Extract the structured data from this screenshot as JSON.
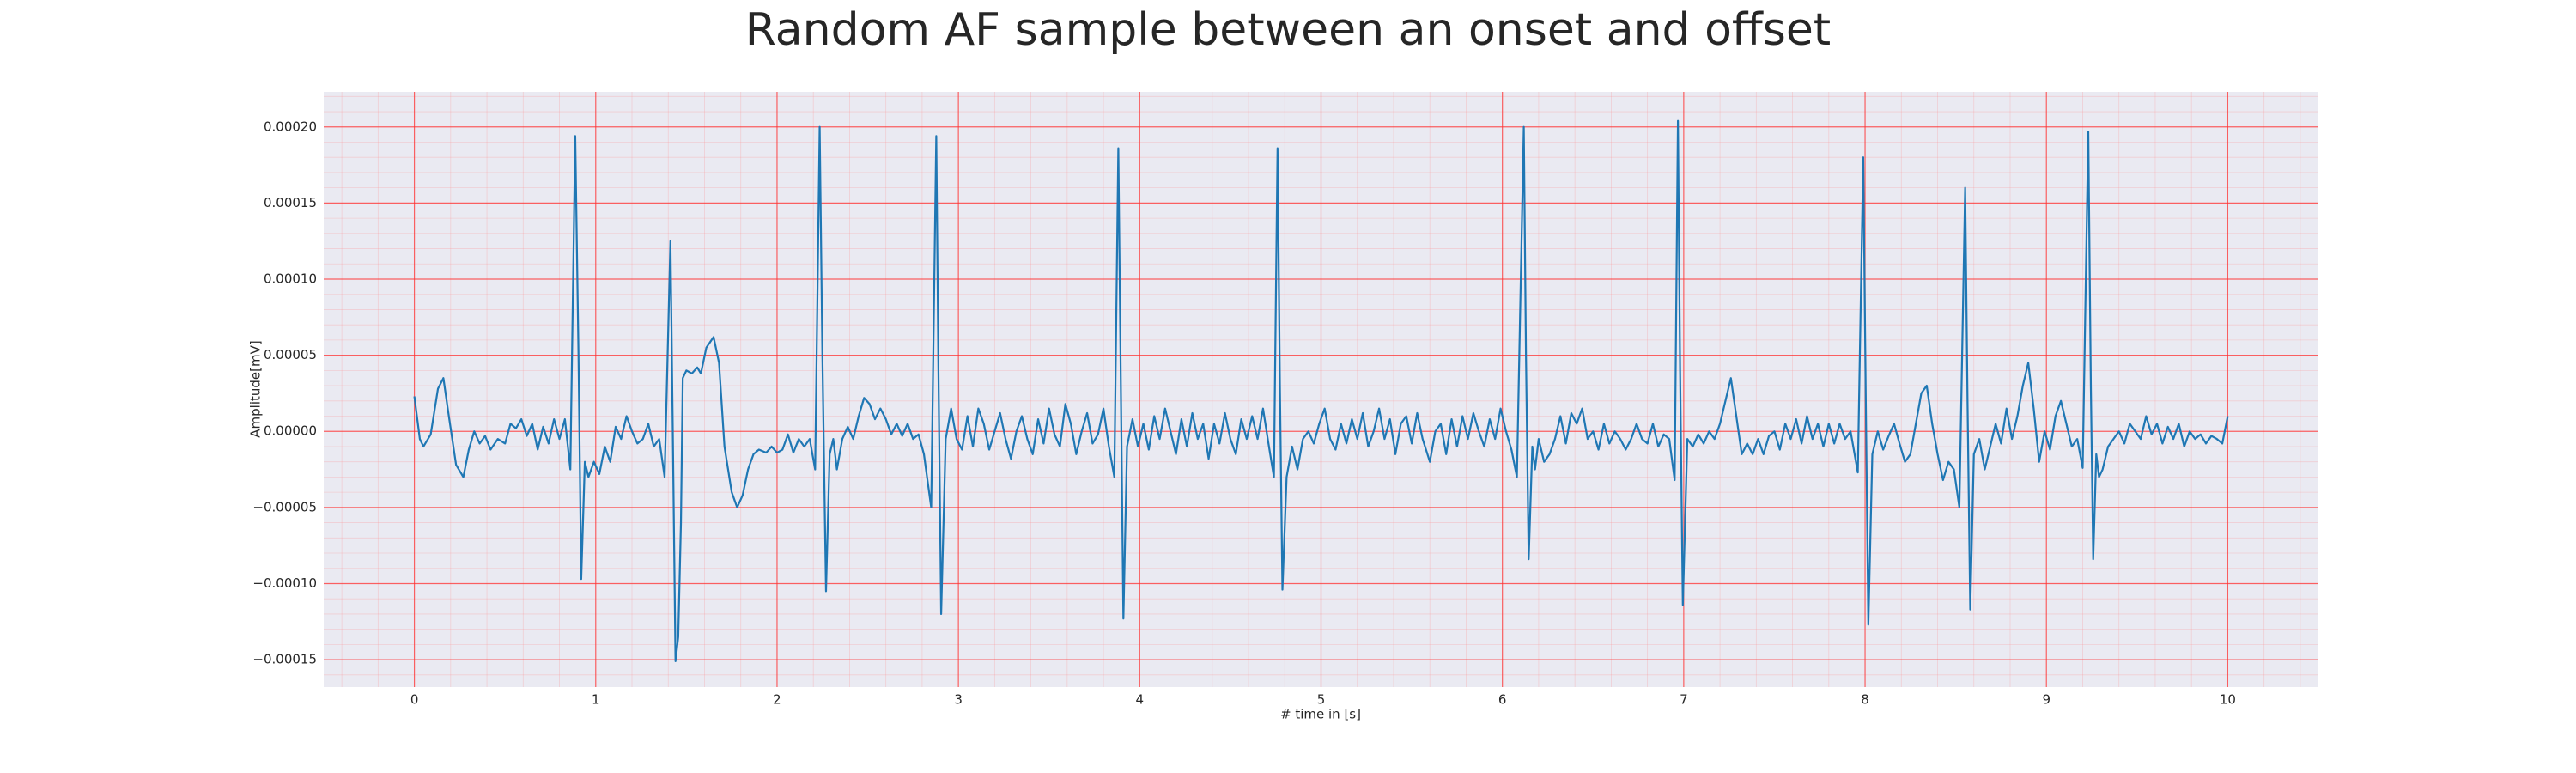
{
  "chart_data": {
    "type": "line",
    "title": "Random AF sample between an onset and offset",
    "xlabel": "# time in [s]",
    "ylabel": "Amplitude[mV]",
    "color": "#1f77b4",
    "background": "#eaeaf2",
    "grid": true,
    "minor_grid": true,
    "xlim": [
      -0.5,
      10.5
    ],
    "xticks": [
      0,
      1,
      2,
      3,
      4,
      5,
      6,
      7,
      8,
      9,
      10
    ],
    "ylim": [
      -0.000168,
      0.000223
    ],
    "yticks": [
      {
        "value": -0.00015,
        "label": "−0.00015"
      },
      {
        "value": -0.0001,
        "label": "−0.00010"
      },
      {
        "value": -5e-05,
        "label": "−0.00005"
      },
      {
        "value": 0,
        "label": "0.00000"
      },
      {
        "value": 5e-05,
        "label": "0.00005"
      },
      {
        "value": 0.0001,
        "label": "0.00010"
      },
      {
        "value": 0.00015,
        "label": "0.00015"
      },
      {
        "value": 0.0002,
        "label": "0.00020"
      }
    ],
    "x": [
      0,
      0.03,
      0.05,
      0.09,
      0.13,
      0.16,
      0.19,
      0.23,
      0.27,
      0.3,
      0.33,
      0.36,
      0.39,
      0.42,
      0.46,
      0.5,
      0.53,
      0.56,
      0.59,
      0.62,
      0.65,
      0.68,
      0.71,
      0.74,
      0.77,
      0.8,
      0.83,
      0.86,
      0.887,
      0.905,
      0.92,
      0.94,
      0.96,
      0.99,
      1.02,
      1.05,
      1.08,
      1.11,
      1.14,
      1.17,
      1.2,
      1.23,
      1.26,
      1.29,
      1.32,
      1.35,
      1.38,
      1.412,
      1.425,
      1.44,
      1.455,
      1.47,
      1.48,
      1.5,
      1.53,
      1.56,
      1.58,
      1.61,
      1.65,
      1.68,
      1.71,
      1.75,
      1.78,
      1.81,
      1.84,
      1.87,
      1.9,
      1.94,
      1.97,
      2.0,
      2.03,
      2.06,
      2.09,
      2.12,
      2.15,
      2.18,
      2.21,
      2.235,
      2.25,
      2.27,
      2.29,
      2.31,
      2.33,
      2.36,
      2.39,
      2.42,
      2.45,
      2.48,
      2.51,
      2.54,
      2.57,
      2.6,
      2.63,
      2.66,
      2.69,
      2.72,
      2.75,
      2.78,
      2.81,
      2.85,
      2.878,
      2.89,
      2.905,
      2.93,
      2.96,
      2.99,
      3.02,
      3.05,
      3.08,
      3.11,
      3.14,
      3.17,
      3.2,
      3.23,
      3.26,
      3.29,
      3.32,
      3.35,
      3.38,
      3.41,
      3.44,
      3.47,
      3.5,
      3.53,
      3.56,
      3.59,
      3.62,
      3.65,
      3.68,
      3.71,
      3.74,
      3.77,
      3.8,
      3.83,
      3.86,
      3.882,
      3.895,
      3.91,
      3.93,
      3.96,
      3.99,
      4.02,
      4.05,
      4.08,
      4.11,
      4.14,
      4.17,
      4.2,
      4.23,
      4.26,
      4.29,
      4.32,
      4.35,
      4.38,
      4.41,
      4.44,
      4.47,
      4.5,
      4.53,
      4.56,
      4.59,
      4.62,
      4.65,
      4.68,
      4.71,
      4.74,
      4.76,
      4.773,
      4.787,
      4.81,
      4.84,
      4.87,
      4.9,
      4.93,
      4.96,
      4.99,
      5.02,
      5.05,
      5.08,
      5.11,
      5.14,
      5.17,
      5.2,
      5.23,
      5.26,
      5.29,
      5.32,
      5.35,
      5.38,
      5.41,
      5.44,
      5.47,
      5.5,
      5.53,
      5.56,
      5.6,
      5.63,
      5.66,
      5.69,
      5.72,
      5.75,
      5.78,
      5.81,
      5.84,
      5.87,
      5.9,
      5.93,
      5.96,
      5.99,
      6.02,
      6.05,
      6.08,
      6.118,
      6.13,
      6.145,
      6.165,
      6.18,
      6.2,
      6.23,
      6.26,
      6.29,
      6.32,
      6.35,
      6.38,
      6.41,
      6.44,
      6.47,
      6.5,
      6.53,
      6.56,
      6.59,
      6.62,
      6.65,
      6.68,
      6.71,
      6.74,
      6.77,
      6.8,
      6.83,
      6.86,
      6.89,
      6.92,
      6.95,
      6.968,
      6.98,
      6.995,
      7.02,
      7.05,
      7.08,
      7.11,
      7.14,
      7.17,
      7.2,
      7.23,
      7.26,
      7.29,
      7.32,
      7.35,
      7.38,
      7.41,
      7.44,
      7.47,
      7.5,
      7.53,
      7.56,
      7.59,
      7.62,
      7.65,
      7.68,
      7.71,
      7.74,
      7.77,
      7.8,
      7.83,
      7.86,
      7.89,
      7.92,
      7.96,
      7.99,
      8.004,
      8.018,
      8.04,
      8.07,
      8.1,
      8.13,
      8.16,
      8.19,
      8.22,
      8.25,
      8.28,
      8.31,
      8.34,
      8.37,
      8.4,
      8.43,
      8.46,
      8.49,
      8.52,
      8.552,
      8.565,
      8.58,
      8.6,
      8.63,
      8.66,
      8.69,
      8.72,
      8.75,
      8.78,
      8.81,
      8.84,
      8.87,
      8.9,
      8.93,
      8.96,
      8.99,
      9.02,
      9.05,
      9.08,
      9.11,
      9.14,
      9.17,
      9.2,
      9.231,
      9.245,
      9.258,
      9.275,
      9.29,
      9.31,
      9.34,
      9.37,
      9.4,
      9.43,
      9.46,
      9.49,
      9.52,
      9.55,
      9.58,
      9.61,
      9.64,
      9.67,
      9.7,
      9.73,
      9.76,
      9.79,
      9.82,
      9.85,
      9.88,
      9.91,
      9.94,
      9.97,
      10.0
    ],
    "values": [
      2.3e-05,
      -5e-06,
      -1e-05,
      -2e-06,
      2.8e-05,
      3.5e-05,
      1e-05,
      -2.2e-05,
      -3e-05,
      -1.2e-05,
      0,
      -8e-06,
      -3e-06,
      -1.2e-05,
      -5e-06,
      -8e-06,
      5e-06,
      2e-06,
      8e-06,
      -3e-06,
      5e-06,
      -1.2e-05,
      3e-06,
      -8e-06,
      8e-06,
      -5e-06,
      8e-06,
      -2.5e-05,
      0.000194,
      5e-05,
      -9.7e-05,
      -2e-05,
      -3e-05,
      -2e-05,
      -2.8e-05,
      -1e-05,
      -2e-05,
      3e-06,
      -5e-06,
      1e-05,
      0,
      -8e-06,
      -5e-06,
      5e-06,
      -1e-05,
      -5e-06,
      -3e-05,
      0.000125,
      0,
      -0.000151,
      -0.000135,
      -6e-05,
      3.5e-05,
      4e-05,
      3.8e-05,
      4.2e-05,
      3.8e-05,
      5.5e-05,
      6.2e-05,
      4.5e-05,
      -1e-05,
      -4e-05,
      -5e-05,
      -4.2e-05,
      -2.5e-05,
      -1.5e-05,
      -1.2e-05,
      -1.4e-05,
      -1e-05,
      -1.4e-05,
      -1.2e-05,
      -2e-06,
      -1.4e-05,
      -5e-06,
      -1e-05,
      -5e-06,
      -2.5e-05,
      0.0002,
      5e-05,
      -0.000105,
      -1.5e-05,
      -5e-06,
      -2.5e-05,
      -5e-06,
      3e-06,
      -5e-06,
      1e-05,
      2.2e-05,
      1.8e-05,
      8e-06,
      1.5e-05,
      8e-06,
      -2e-06,
      5e-06,
      -3e-06,
      5e-06,
      -5e-06,
      -2e-06,
      -1.5e-05,
      -5e-05,
      0.000194,
      4e-05,
      -0.00012,
      -5e-06,
      1.5e-05,
      -5e-06,
      -1.2e-05,
      1e-05,
      -1e-05,
      1.5e-05,
      5e-06,
      -1.2e-05,
      0,
      1.2e-05,
      -5e-06,
      -1.8e-05,
      0,
      1e-05,
      -5e-06,
      -1.5e-05,
      8e-06,
      -8e-06,
      1.5e-05,
      -2e-06,
      -1e-05,
      1.8e-05,
      5e-06,
      -1.5e-05,
      0,
      1.2e-05,
      -8e-06,
      -2e-06,
      1.5e-05,
      -1e-05,
      -3e-05,
      0.000186,
      4e-05,
      -0.000123,
      -1e-05,
      8e-06,
      -1e-05,
      5e-06,
      -1.2e-05,
      1e-05,
      -5e-06,
      1.5e-05,
      0,
      -1.5e-05,
      8e-06,
      -1e-05,
      1.2e-05,
      -5e-06,
      5e-06,
      -1.8e-05,
      5e-06,
      -8e-06,
      1.2e-05,
      -5e-06,
      -1.5e-05,
      8e-06,
      -5e-06,
      1e-05,
      -5e-06,
      1.5e-05,
      -8e-06,
      -3e-05,
      0.000186,
      3e-05,
      -0.000104,
      -3e-05,
      -1e-05,
      -2.5e-05,
      -5e-06,
      0,
      -8e-06,
      5e-06,
      1.5e-05,
      -5e-06,
      -1.2e-05,
      5e-06,
      -8e-06,
      8e-06,
      -5e-06,
      1.2e-05,
      -1e-05,
      0,
      1.5e-05,
      -5e-06,
      8e-06,
      -1.5e-05,
      5e-06,
      1e-05,
      -8e-06,
      1.2e-05,
      -5e-06,
      -2e-05,
      0,
      5e-06,
      -1.5e-05,
      8e-06,
      -1e-05,
      1e-05,
      -5e-06,
      1.2e-05,
      0,
      -1e-05,
      8e-06,
      -5e-06,
      1.5e-05,
      0,
      -1.2e-05,
      -3e-05,
      0.0002,
      5e-05,
      -8.4e-05,
      -1e-05,
      -2.5e-05,
      -5e-06,
      -2e-05,
      -1.5e-05,
      -5e-06,
      1e-05,
      -8e-06,
      1.2e-05,
      5e-06,
      1.5e-05,
      -5e-06,
      0,
      -1.2e-05,
      5e-06,
      -8e-06,
      0,
      -5e-06,
      -1.2e-05,
      -5e-06,
      5e-06,
      -5e-06,
      -8e-06,
      5e-06,
      -1e-05,
      -2e-06,
      -5e-06,
      -3.2e-05,
      0.000204,
      4e-05,
      -0.000114,
      -5e-06,
      -1e-05,
      -2e-06,
      -8e-06,
      0,
      -5e-06,
      5e-06,
      2e-05,
      3.5e-05,
      1e-05,
      -1.5e-05,
      -8e-06,
      -1.5e-05,
      -5e-06,
      -1.5e-05,
      -3e-06,
      0,
      -1.2e-05,
      5e-06,
      -5e-06,
      8e-06,
      -8e-06,
      1e-05,
      -5e-06,
      5e-06,
      -1e-05,
      5e-06,
      -8e-06,
      5e-06,
      -5e-06,
      0,
      -2.7e-05,
      0.00018,
      2e-05,
      -0.000127,
      -1.5e-05,
      0,
      -1.2e-05,
      -3e-06,
      5e-06,
      -8e-06,
      -2e-05,
      -1.5e-05,
      5e-06,
      2.5e-05,
      3e-05,
      5e-06,
      -1.5e-05,
      -3.2e-05,
      -2e-05,
      -2.5e-05,
      -5e-05,
      0.00016,
      2e-05,
      -0.000117,
      -1.5e-05,
      -5e-06,
      -2.5e-05,
      -1e-05,
      5e-06,
      -8e-06,
      1.5e-05,
      -5e-06,
      1e-05,
      3e-05,
      4.5e-05,
      1.5e-05,
      -2e-05,
      0,
      -1.2e-05,
      1e-05,
      2e-05,
      5e-06,
      -1e-05,
      -5e-06,
      -2.4e-05,
      0.000197,
      3e-05,
      -8.4e-05,
      -1.5e-05,
      -3e-05,
      -2.5e-05,
      -1e-05,
      -5e-06,
      0,
      -8e-06,
      5e-06,
      0,
      -5e-06,
      1e-05,
      -2e-06,
      5e-06,
      -8e-06,
      3e-06,
      -5e-06,
      5e-06,
      -1e-05,
      0,
      -5e-06,
      -2e-06,
      -8e-06,
      -3e-06,
      -5e-06,
      -8e-06,
      1e-05
    ]
  }
}
